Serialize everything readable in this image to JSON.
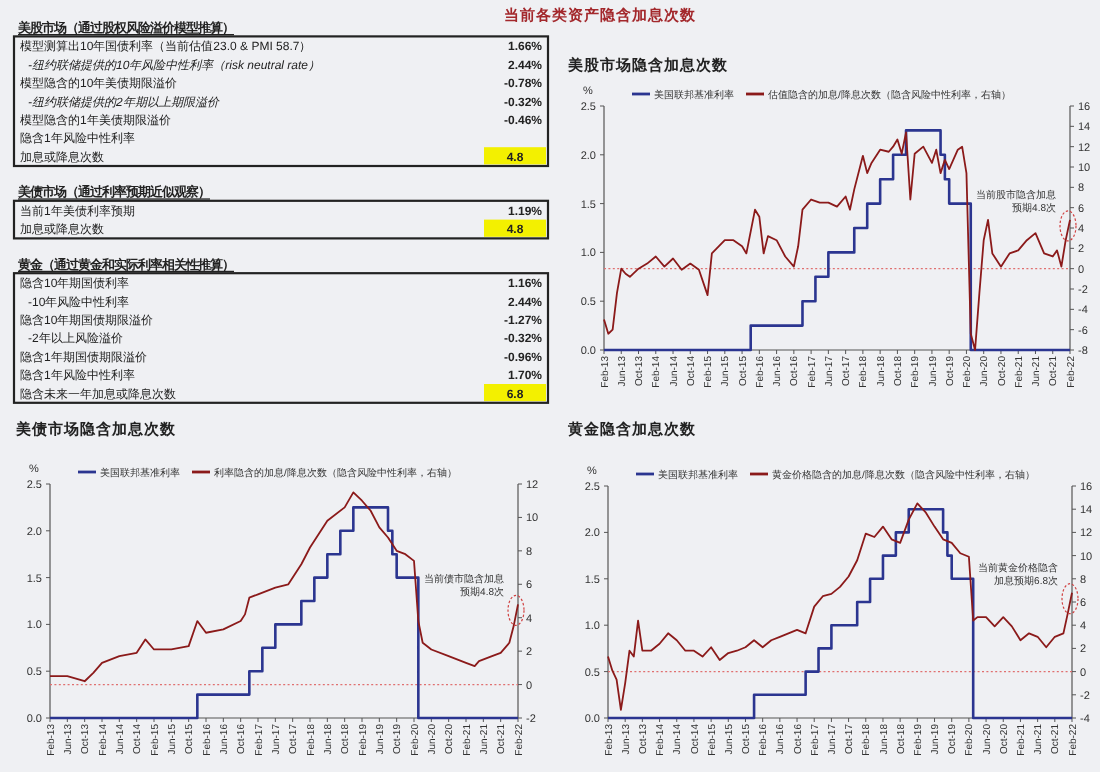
{
  "chart_data": [
    {
      "type": "other",
      "title": "当前各类资产隐含加息次数",
      "categories": [
        "美股市场（通过股权风险溢价模型推算）",
        "模型测算出10年国债利率（当前估值23.0 & PMI 58.7）",
        "-纽约联储提供的10年风险中性利率（risk neutral rate）",
        "模型隐含的10年美债期限溢价",
        "-纽约联储提供的2年期以上期限溢价",
        "模型隐含的1年美债期限溢价",
        "隐含1年风险中性利率",
        "加息或降息次数",
        "美债市场（通过利率预期近似观察）",
        "当前1年美债利率预期",
        "加息或降息次数",
        "黄金（通过黄金和实际利率相关性推算）",
        "隐含10年期国债利率",
        "-10年风险中性利率",
        "隐含10年期国债期限溢价",
        "-2年以上风险溢价",
        "隐含1年期国债期限溢价",
        "隐含1年风险中性利率",
        "隐含未来一年加息或降息次数"
      ],
      "value_labels": [
        null,
        "1.66%",
        "2.44%",
        "-0.78%",
        "-0.32%",
        "-0.46%",
        null,
        "4.8",
        null,
        "1.19%",
        "4.8",
        null,
        "1.16%",
        "2.44%",
        "-1.27%",
        "-0.32%",
        "-0.96%",
        "1.70%",
        "6.8"
      ]
    },
    {
      "type": "line",
      "title": "美股市场隐含加息次数",
      "ylabel": "%",
      "legend": "top",
      "xlim": [
        "2013-02",
        "2022-02"
      ],
      "xticks": [
        {
          "value": "2013-02",
          "label": "Feb-13"
        },
        {
          "value": "2013-06",
          "label": "Jun-13"
        },
        {
          "value": "2013-10",
          "label": "Oct-13"
        },
        {
          "value": "2014-02",
          "label": "Feb-14"
        },
        {
          "value": "2014-06",
          "label": "Jun-14"
        },
        {
          "value": "2014-10",
          "label": "Oct-14"
        },
        {
          "value": "2015-02",
          "label": "Feb-15"
        },
        {
          "value": "2015-06",
          "label": "Jun-15"
        },
        {
          "value": "2015-10",
          "label": "Oct-15"
        },
        {
          "value": "2016-02",
          "label": "Feb-16"
        },
        {
          "value": "2016-06",
          "label": "Jun-16"
        },
        {
          "value": "2016-10",
          "label": "Oct-16"
        },
        {
          "value": "2017-02",
          "label": "Feb-17"
        },
        {
          "value": "2017-06",
          "label": "Jun-17"
        },
        {
          "value": "2017-10",
          "label": "Oct-17"
        },
        {
          "value": "2018-02",
          "label": "Feb-18"
        },
        {
          "value": "2018-06",
          "label": "Jun-18"
        },
        {
          "value": "2018-10",
          "label": "Oct-18"
        },
        {
          "value": "2019-02",
          "label": "Feb-19"
        },
        {
          "value": "2019-06",
          "label": "Jun-19"
        },
        {
          "value": "2019-10",
          "label": "Oct-19"
        },
        {
          "value": "2020-02",
          "label": "Feb-20"
        },
        {
          "value": "2020-06",
          "label": "Jun-20"
        },
        {
          "value": "2020-10",
          "label": "Oct-20"
        },
        {
          "value": "2021-02",
          "label": "Feb-21"
        },
        {
          "value": "2021-06",
          "label": "Jun-21"
        },
        {
          "value": "2021-10",
          "label": "Oct-21"
        },
        {
          "value": "2022-02",
          "label": "Feb-22"
        }
      ],
      "ylim": [
        0,
        2.5
      ],
      "yticks": [
        {
          "value": 0,
          "label": "0.0"
        },
        {
          "value": 0.5,
          "label": "0.5"
        },
        {
          "value": 1,
          "label": "1.0"
        },
        {
          "value": 1.5,
          "label": "1.5"
        },
        {
          "value": 2,
          "label": "2.0"
        },
        {
          "value": 2.5,
          "label": "2.5"
        }
      ],
      "y2lim": [
        -8,
        16
      ],
      "y2ticks": [
        -8,
        -6,
        -4,
        -2,
        0,
        2,
        4,
        6,
        8,
        10,
        12,
        14,
        16
      ],
      "ref_lines": [
        {
          "axis": "y2",
          "value": 0,
          "color": "#e07070",
          "line_style": "dotted"
        }
      ],
      "annotations": [
        "当前股市隐含加息预期4.8次"
      ],
      "series": [
        {
          "name": "美国联邦基准利率",
          "type": "step",
          "color": "#2b3590",
          "x": [
            "2013-02",
            "2015-12",
            "2016-12",
            "2017-03",
            "2017-06",
            "2017-12",
            "2018-03",
            "2018-06",
            "2018-09",
            "2018-12",
            "2019-08",
            "2019-09",
            "2019-10",
            "2020-03",
            "2022-02"
          ],
          "values": [
            0,
            0.25,
            0.5,
            0.75,
            1,
            1.25,
            1.5,
            1.75,
            2,
            2.25,
            2,
            1.75,
            1.5,
            0,
            0
          ]
        },
        {
          "name": "估值隐含的加息/降息次数（隐含风险中性利率，右轴）",
          "type": "line",
          "axis": "y2",
          "color": "#8b1a1a",
          "x": [
            "2013-02",
            "2013-03",
            "2013-04",
            "2013-05",
            "2013-06",
            "2013-07",
            "2013-08",
            "2013-10",
            "2013-12",
            "2014-02",
            "2014-04",
            "2014-06",
            "2014-08",
            "2014-10",
            "2014-12",
            "2015-02",
            "2015-03",
            "2015-06",
            "2015-08",
            "2015-10",
            "2015-11",
            "2016-01",
            "2016-02",
            "2016-03",
            "2016-04",
            "2016-06",
            "2016-08",
            "2016-10",
            "2016-11",
            "2016-12",
            "2017-02",
            "2017-04",
            "2017-06",
            "2017-08",
            "2017-10",
            "2017-11",
            "2017-12",
            "2018-02",
            "2018-03",
            "2018-04",
            "2018-06",
            "2018-08",
            "2018-09",
            "2018-10",
            "2018-11",
            "2018-12",
            "2019-01",
            "2019-02",
            "2019-04",
            "2019-06",
            "2019-07",
            "2019-08",
            "2019-09",
            "2019-10",
            "2019-12",
            "2020-01",
            "2020-02",
            "2020-03",
            "2020-04",
            "2020-05",
            "2020-06",
            "2020-07",
            "2020-08",
            "2020-10",
            "2020-12",
            "2021-02",
            "2021-04",
            "2021-06",
            "2021-08",
            "2021-10",
            "2021-11",
            "2021-12",
            "2022-01",
            "2022-02"
          ],
          "values": [
            -5,
            -6.4,
            -6,
            -2.4,
            0,
            -0.5,
            -0.8,
            0,
            0.5,
            1.2,
            0.2,
            1,
            -0.1,
            0.5,
            -0.1,
            -2.6,
            1.5,
            2.8,
            2.8,
            2.2,
            1.5,
            5.8,
            5.1,
            1.5,
            3.2,
            2.8,
            1.2,
            0.2,
            2.2,
            5.8,
            6.8,
            6.5,
            6.5,
            6.1,
            7.1,
            5.8,
            7.8,
            11.1,
            9.4,
            10.4,
            11.7,
            11.5,
            12,
            12.7,
            11.3,
            13.4,
            6.8,
            11.3,
            12,
            10.4,
            11.7,
            9.4,
            10.7,
            9.8,
            11.7,
            12,
            9.4,
            -6.4,
            -8,
            -2.4,
            2.8,
            4.8,
            1.5,
            0.2,
            1.5,
            1.8,
            2.8,
            3.5,
            1.5,
            1.2,
            1.8,
            0.2,
            2.8,
            4.8
          ]
        }
      ]
    },
    {
      "type": "line",
      "title": "美债市场隐含加息次数",
      "ylabel": "%",
      "legend": "top",
      "xlim": [
        "2013-02",
        "2022-02"
      ],
      "xticks": [
        {
          "value": "2013-02",
          "label": "Feb-13"
        },
        {
          "value": "2013-06",
          "label": "Jun-13"
        },
        {
          "value": "2013-10",
          "label": "Oct-13"
        },
        {
          "value": "2014-02",
          "label": "Feb-14"
        },
        {
          "value": "2014-06",
          "label": "Jun-14"
        },
        {
          "value": "2014-10",
          "label": "Oct-14"
        },
        {
          "value": "2015-02",
          "label": "Feb-15"
        },
        {
          "value": "2015-06",
          "label": "Jun-15"
        },
        {
          "value": "2015-10",
          "label": "Oct-15"
        },
        {
          "value": "2016-02",
          "label": "Feb-16"
        },
        {
          "value": "2016-06",
          "label": "Jun-16"
        },
        {
          "value": "2016-10",
          "label": "Oct-16"
        },
        {
          "value": "2017-02",
          "label": "Feb-17"
        },
        {
          "value": "2017-06",
          "label": "Jun-17"
        },
        {
          "value": "2017-10",
          "label": "Oct-17"
        },
        {
          "value": "2018-02",
          "label": "Feb-18"
        },
        {
          "value": "2018-06",
          "label": "Jun-18"
        },
        {
          "value": "2018-10",
          "label": "Oct-18"
        },
        {
          "value": "2019-02",
          "label": "Feb-19"
        },
        {
          "value": "2019-06",
          "label": "Jun-19"
        },
        {
          "value": "2019-10",
          "label": "Oct-19"
        },
        {
          "value": "2020-02",
          "label": "Feb-20"
        },
        {
          "value": "2020-06",
          "label": "Jun-20"
        },
        {
          "value": "2020-10",
          "label": "Oct-20"
        },
        {
          "value": "2021-02",
          "label": "Feb-21"
        },
        {
          "value": "2021-06",
          "label": "Jun-21"
        },
        {
          "value": "2021-10",
          "label": "Oct-21"
        },
        {
          "value": "2022-02",
          "label": "Feb-22"
        }
      ],
      "ylim": [
        0,
        2.5
      ],
      "yticks": [
        {
          "value": 0,
          "label": "0.0"
        },
        {
          "value": 0.5,
          "label": "0.5"
        },
        {
          "value": 1,
          "label": "1.0"
        },
        {
          "value": 1.5,
          "label": "1.5"
        },
        {
          "value": 2,
          "label": "2.0"
        },
        {
          "value": 2.5,
          "label": "2.5"
        }
      ],
      "y2lim": [
        -2,
        12
      ],
      "y2ticks": [
        -2,
        0,
        2,
        4,
        6,
        8,
        10,
        12
      ],
      "ref_lines": [
        {
          "axis": "y2",
          "value": 0,
          "color": "#e07070",
          "line_style": "dotted"
        }
      ],
      "annotations": [
        "当前债市隐含加息预期4.8次"
      ],
      "series": [
        {
          "name": "美国联邦基准利率",
          "type": "step",
          "color": "#2b3590",
          "x": [
            "2013-02",
            "2015-12",
            "2016-12",
            "2017-03",
            "2017-06",
            "2017-12",
            "2018-03",
            "2018-06",
            "2018-09",
            "2018-12",
            "2019-08",
            "2019-09",
            "2019-10",
            "2020-03",
            "2022-02"
          ],
          "values": [
            0,
            0.25,
            0.5,
            0.75,
            1,
            1.25,
            1.5,
            1.75,
            2,
            2.25,
            2,
            1.75,
            1.5,
            0,
            0
          ]
        },
        {
          "name": "利率隐含的加息/降息次数（隐含风险中性利率，右轴）",
          "type": "line",
          "axis": "y2",
          "color": "#8b1a1a",
          "x": [
            "2013-02",
            "2013-06",
            "2013-10",
            "2013-12",
            "2014-02",
            "2014-06",
            "2014-10",
            "2014-12",
            "2015-02",
            "2015-06",
            "2015-10",
            "2015-12",
            "2016-02",
            "2016-06",
            "2016-10",
            "2016-11",
            "2016-12",
            "2017-02",
            "2017-06",
            "2017-09",
            "2017-12",
            "2018-02",
            "2018-06",
            "2018-10",
            "2018-12",
            "2019-02",
            "2019-04",
            "2019-06",
            "2019-08",
            "2019-10",
            "2019-12",
            "2020-02",
            "2020-03",
            "2020-04",
            "2020-06",
            "2020-10",
            "2021-02",
            "2021-04",
            "2021-05",
            "2021-08",
            "2021-10",
            "2021-12",
            "2022-01",
            "2022-02"
          ],
          "values": [
            0.5,
            0.5,
            0.2,
            0.7,
            1.3,
            1.7,
            1.9,
            2.7,
            2.1,
            2.1,
            2.3,
            3.8,
            3.1,
            3.3,
            3.8,
            4.2,
            5.2,
            5.4,
            5.8,
            6,
            7.2,
            8.2,
            9.8,
            10.6,
            11.5,
            11,
            10.4,
            9.4,
            8.8,
            8,
            7.8,
            7.4,
            3.8,
            2.5,
            2.1,
            1.7,
            1.3,
            1.1,
            1.4,
            1.7,
            1.9,
            2.5,
            3.5,
            4.8
          ]
        }
      ]
    },
    {
      "type": "line",
      "title": "黄金隐含加息次数",
      "ylabel": "%",
      "legend": "top",
      "xlim": [
        "2013-02",
        "2022-02"
      ],
      "xticks": [
        {
          "value": "2013-02",
          "label": "Feb-13"
        },
        {
          "value": "2013-06",
          "label": "Jun-13"
        },
        {
          "value": "2013-10",
          "label": "Oct-13"
        },
        {
          "value": "2014-02",
          "label": "Feb-14"
        },
        {
          "value": "2014-06",
          "label": "Jun-14"
        },
        {
          "value": "2014-10",
          "label": "Oct-14"
        },
        {
          "value": "2015-02",
          "label": "Feb-15"
        },
        {
          "value": "2015-06",
          "label": "Jun-15"
        },
        {
          "value": "2015-10",
          "label": "Oct-15"
        },
        {
          "value": "2016-02",
          "label": "Feb-16"
        },
        {
          "value": "2016-06",
          "label": "Jun-16"
        },
        {
          "value": "2016-10",
          "label": "Oct-16"
        },
        {
          "value": "2017-02",
          "label": "Feb-17"
        },
        {
          "value": "2017-06",
          "label": "Jun-17"
        },
        {
          "value": "2017-10",
          "label": "Oct-17"
        },
        {
          "value": "2018-02",
          "label": "Feb-18"
        },
        {
          "value": "2018-06",
          "label": "Jun-18"
        },
        {
          "value": "2018-10",
          "label": "Oct-18"
        },
        {
          "value": "2019-02",
          "label": "Feb-19"
        },
        {
          "value": "2019-06",
          "label": "Jun-19"
        },
        {
          "value": "2019-10",
          "label": "Oct-19"
        },
        {
          "value": "2020-02",
          "label": "Feb-20"
        },
        {
          "value": "2020-06",
          "label": "Jun-20"
        },
        {
          "value": "2020-10",
          "label": "Oct-20"
        },
        {
          "value": "2021-02",
          "label": "Feb-21"
        },
        {
          "value": "2021-06",
          "label": "Jun-21"
        },
        {
          "value": "2021-10",
          "label": "Oct-21"
        },
        {
          "value": "2022-02",
          "label": "Feb-22"
        }
      ],
      "ylim": [
        0,
        2.5
      ],
      "yticks": [
        {
          "value": 0,
          "label": "0.0"
        },
        {
          "value": 0.5,
          "label": "0.5"
        },
        {
          "value": 1,
          "label": "1.0"
        },
        {
          "value": 1.5,
          "label": "1.5"
        },
        {
          "value": 2,
          "label": "2.0"
        },
        {
          "value": 2.5,
          "label": "2.5"
        }
      ],
      "y2lim": [
        -4,
        16
      ],
      "y2ticks": [
        -4,
        -2,
        0,
        2,
        4,
        6,
        8,
        10,
        12,
        14,
        16
      ],
      "ref_lines": [
        {
          "axis": "y2",
          "value": 0,
          "color": "#e07070",
          "line_style": "dotted"
        }
      ],
      "annotations": [
        "当前黄金价格隐含加息预期6.8次"
      ],
      "series": [
        {
          "name": "美国联邦基准利率",
          "type": "step",
          "color": "#2b3590",
          "x": [
            "2013-02",
            "2015-12",
            "2016-12",
            "2017-03",
            "2017-06",
            "2017-12",
            "2018-03",
            "2018-06",
            "2018-09",
            "2018-12",
            "2019-08",
            "2019-09",
            "2019-10",
            "2020-03",
            "2022-02"
          ],
          "values": [
            0,
            0.25,
            0.5,
            0.75,
            1,
            1.25,
            1.5,
            1.75,
            2,
            2.25,
            2,
            1.75,
            1.5,
            0,
            0
          ]
        },
        {
          "name": "黄金价格隐含的加息/降息次数（隐含风险中性利率，右轴）",
          "type": "line",
          "axis": "y2",
          "color": "#8b1a1a",
          "x": [
            "2013-02",
            "2013-03",
            "2013-04",
            "2013-05",
            "2013-06",
            "2013-07",
            "2013-08",
            "2013-09",
            "2013-10",
            "2013-12",
            "2014-02",
            "2014-04",
            "2014-06",
            "2014-08",
            "2014-10",
            "2014-12",
            "2015-02",
            "2015-04",
            "2015-06",
            "2015-08",
            "2015-10",
            "2015-12",
            "2016-02",
            "2016-04",
            "2016-06",
            "2016-08",
            "2016-10",
            "2016-12",
            "2017-02",
            "2017-04",
            "2017-06",
            "2017-08",
            "2017-10",
            "2017-12",
            "2018-02",
            "2018-04",
            "2018-06",
            "2018-08",
            "2018-10",
            "2018-12",
            "2019-02",
            "2019-04",
            "2019-06",
            "2019-08",
            "2019-10",
            "2019-12",
            "2020-02",
            "2020-03",
            "2020-04",
            "2020-06",
            "2020-08",
            "2020-10",
            "2020-12",
            "2021-02",
            "2021-04",
            "2021-06",
            "2021-08",
            "2021-10",
            "2021-12",
            "2022-01",
            "2022-02"
          ],
          "values": [
            1.3,
            0.1,
            -0.7,
            -3.3,
            -1,
            1.8,
            1.3,
            4.4,
            1.8,
            1.8,
            2.4,
            3.3,
            2.7,
            1.8,
            1.8,
            1.3,
            2.1,
            1,
            1.6,
            1.8,
            2.1,
            2.7,
            2.1,
            2.7,
            3,
            3.3,
            3.6,
            3.3,
            5.6,
            6.5,
            6.7,
            7.3,
            8.2,
            9.6,
            11.9,
            11.6,
            12.5,
            11.4,
            11.1,
            13.1,
            14.5,
            13.7,
            12.5,
            11.4,
            11.1,
            10.2,
            9.9,
            4.4,
            4.7,
            4.7,
            3.9,
            4.7,
            3.9,
            2.7,
            3.3,
            3,
            2.1,
            3,
            3.3,
            5,
            6.8
          ]
        }
      ]
    }
  ]
}
